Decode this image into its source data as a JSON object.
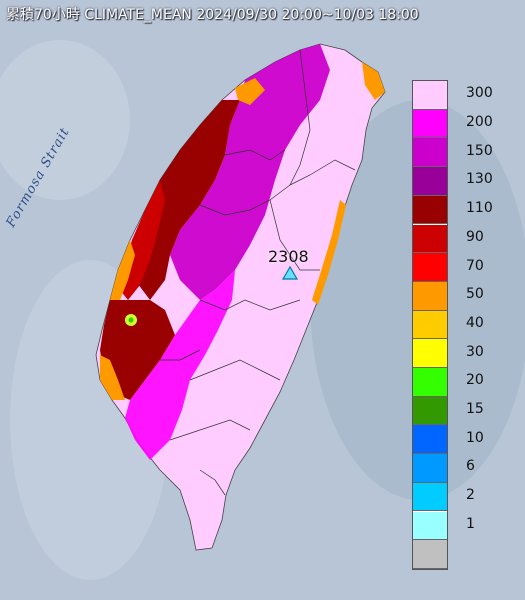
{
  "title": "累積70小時 CLIMATE_MEAN 2024/09/30 20:00~10/03 18:00",
  "strait_label": "Formosa Strait",
  "station": {
    "label": "2308"
  },
  "edge_text": "",
  "legend": [
    {
      "label": "300",
      "color": "#ffccff"
    },
    {
      "label": "200",
      "color": "#ff00ff"
    },
    {
      "label": "150",
      "color": "#cc00cc"
    },
    {
      "label": "130",
      "color": "#990099"
    },
    {
      "label": "110",
      "color": "#990000"
    },
    {
      "label": "90",
      "color": "#cc0000"
    },
    {
      "label": "70",
      "color": "#ff0000"
    },
    {
      "label": "50",
      "color": "#ff9900"
    },
    {
      "label": "40",
      "color": "#ffcc00"
    },
    {
      "label": "30",
      "color": "#ffff00"
    },
    {
      "label": "20",
      "color": "#33ff00"
    },
    {
      "label": "15",
      "color": "#339900"
    },
    {
      "label": "10",
      "color": "#0066ff"
    },
    {
      "label": "6",
      "color": "#0099ff"
    },
    {
      "label": "2",
      "color": "#00ccff"
    },
    {
      "label": "1",
      "color": "#99ffff"
    },
    {
      "label": "",
      "color": "#c0c0c0"
    }
  ]
}
